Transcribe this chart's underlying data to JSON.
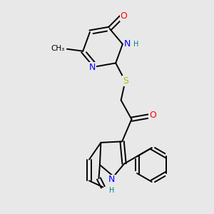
{
  "background_color": "#e8e8e8",
  "bond_color": "#000000",
  "atom_colors": {
    "O": "#ff0000",
    "N": "#0000ff",
    "S": "#b8b800",
    "H": "#008080",
    "C": "#000000"
  },
  "figsize": [
    3.0,
    3.0
  ],
  "dpi": 100,
  "xlim": [
    0,
    10
  ],
  "ylim": [
    0,
    10
  ]
}
